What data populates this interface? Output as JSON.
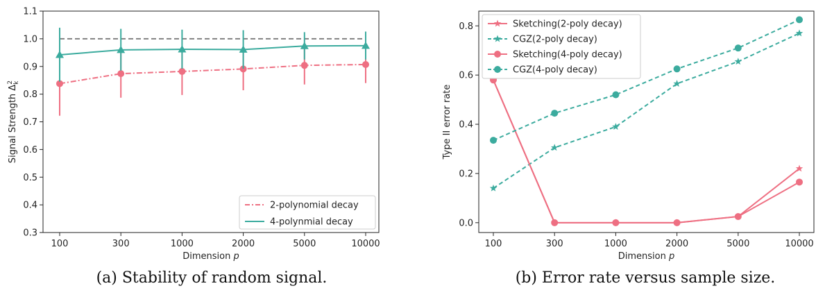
{
  "colors": {
    "pink": "#ee6f82",
    "teal": "#3bab9e",
    "gray": "#808080"
  },
  "chart_data": [
    {
      "type": "line",
      "panel": "a",
      "caption": "(a) Stability of random signal.",
      "xlabel": "Dimension p",
      "ylabel": "Signal Strength Δk²",
      "categories": [
        "100",
        "300",
        "1000",
        "2000",
        "5000",
        "10000"
      ],
      "ylim": [
        0.3,
        1.1
      ],
      "yticks": [
        "0.3",
        "0.4",
        "0.5",
        "0.6",
        "0.7",
        "0.8",
        "0.9",
        "1.0",
        "1.1"
      ],
      "ytick_values": [
        0.3,
        0.4,
        0.5,
        0.6,
        0.7,
        0.8,
        0.9,
        1.0,
        1.1
      ],
      "reference_line": 1.0,
      "legend_position": "lower-right",
      "grid": false,
      "series": [
        {
          "name": "2-polynomial decay",
          "color": "pink",
          "dash": "dashdot",
          "marker": "circle",
          "values": [
            0.838,
            0.874,
            0.882,
            0.891,
            0.904,
            0.907
          ],
          "error_low": [
            0.722,
            0.787,
            0.797,
            0.814,
            0.835,
            0.84
          ],
          "error_high": [
            0.953,
            0.96,
            0.965,
            0.966,
            0.973,
            0.974
          ]
        },
        {
          "name": "4-polynmial decay",
          "color": "teal",
          "dash": "solid",
          "marker": "triangle",
          "values": [
            0.942,
            0.96,
            0.962,
            0.961,
            0.974,
            0.975
          ],
          "error_low": [
            0.845,
            0.885,
            0.892,
            0.892,
            0.925,
            0.925
          ],
          "error_high": [
            1.04,
            1.036,
            1.033,
            1.031,
            1.024,
            1.026
          ]
        }
      ]
    },
    {
      "type": "line",
      "panel": "b",
      "caption": "(b) Error rate versus sample size.",
      "xlabel": "Dimension p",
      "ylabel": "Type II error rate",
      "categories": [
        "100",
        "300",
        "1000",
        "2000",
        "5000",
        "10000"
      ],
      "ylim": [
        -0.04,
        0.86
      ],
      "yticks": [
        "0.0",
        "0.2",
        "0.4",
        "0.6",
        "0.8"
      ],
      "ytick_values": [
        0.0,
        0.2,
        0.4,
        0.6,
        0.8
      ],
      "legend_position": "upper-left",
      "grid": false,
      "series": [
        {
          "name": "Sketching(2-poly decay)",
          "color": "pink",
          "dash": "solid",
          "marker": "star",
          "values": [
            0.58,
            0.0,
            0.0,
            0.0,
            0.025,
            0.22
          ]
        },
        {
          "name": "CGZ(2-poly decay)",
          "color": "teal",
          "dash": "dashed",
          "marker": "star",
          "values": [
            0.14,
            0.305,
            0.39,
            0.565,
            0.655,
            0.77
          ]
        },
        {
          "name": "Sketching(4-poly decay)",
          "color": "pink",
          "dash": "solid",
          "marker": "circle",
          "values": [
            0.58,
            0.0,
            0.0,
            0.0,
            0.025,
            0.165
          ]
        },
        {
          "name": "CGZ(4-poly decay)",
          "color": "teal",
          "dash": "dashed",
          "marker": "circle",
          "values": [
            0.335,
            0.445,
            0.52,
            0.625,
            0.71,
            0.825
          ]
        }
      ]
    }
  ]
}
